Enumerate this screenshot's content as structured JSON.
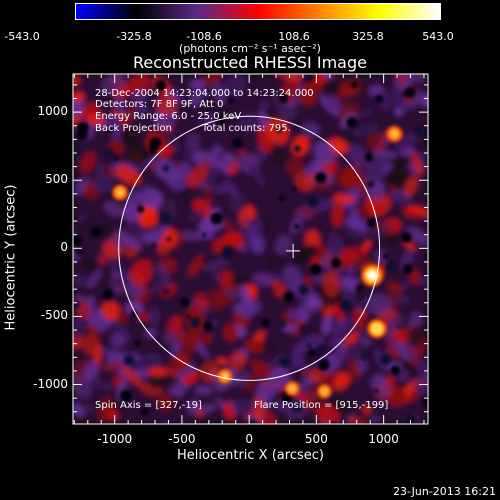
{
  "colorbar": {
    "ticks": [
      "-543.0",
      "-325.8",
      "-108.6",
      "108.6",
      "325.8",
      "543.0"
    ],
    "units": "(photons cm⁻² s⁻¹ asec⁻²)",
    "colors": [
      "#0000ff",
      "#000000",
      "#5a2a8a",
      "#ff0000",
      "#ff8000",
      "#ffff00",
      "#ffffff"
    ]
  },
  "annotations": {
    "time_range": "28-Dec-2004 14:23:04.000 to 14:23:24.000",
    "detectors": "Detectors: 7F 8F 9F, Att 0",
    "energy": "Energy Range: 6.0 - 25.0 keV",
    "method": "Back Projection",
    "counts": "Total counts: 795.",
    "spin_axis": "Spin Axis = [327,-19]",
    "flare_position": "Flare Position = [915,-199]"
  },
  "footer": {
    "timestamp": "23-Jun-2013 16:21"
  },
  "chart_data": {
    "type": "heatmap",
    "title": "Reconstructed RHESSI Image",
    "xlabel": "Heliocentric X (arcsec)",
    "ylabel": "Heliocentric Y (arcsec)",
    "xlim": [
      -1310,
      1330
    ],
    "ylim": [
      -1290,
      1280
    ],
    "xticks": [
      "-1000",
      "-500",
      "0",
      "500",
      "1000"
    ],
    "yticks": [
      "1000",
      "500",
      "0",
      "-500",
      "-1000"
    ],
    "xtick_values": [
      -1000,
      -500,
      0,
      500,
      1000
    ],
    "ytick_values": [
      1000,
      500,
      0,
      -500,
      -1000
    ],
    "solar_limb": {
      "center": [
        0,
        0
      ],
      "radius": 970
    },
    "marker": {
      "position": [
        327,
        -19
      ],
      "label": "spin axis"
    },
    "value_range": [
      -543.0,
      543.0
    ],
    "bright_sources": [
      {
        "x": 915,
        "y": -199,
        "value": 543.0
      },
      {
        "x": 950,
        "y": -590,
        "value": 420.0
      },
      {
        "x": 1080,
        "y": 840,
        "value": 260.0
      },
      {
        "x": -960,
        "y": 410,
        "value": 250.0
      },
      {
        "x": -180,
        "y": -940,
        "value": 230.0
      },
      {
        "x": 320,
        "y": -1030,
        "value": 220.0
      },
      {
        "x": 560,
        "y": -1050,
        "value": 200.0
      }
    ]
  }
}
